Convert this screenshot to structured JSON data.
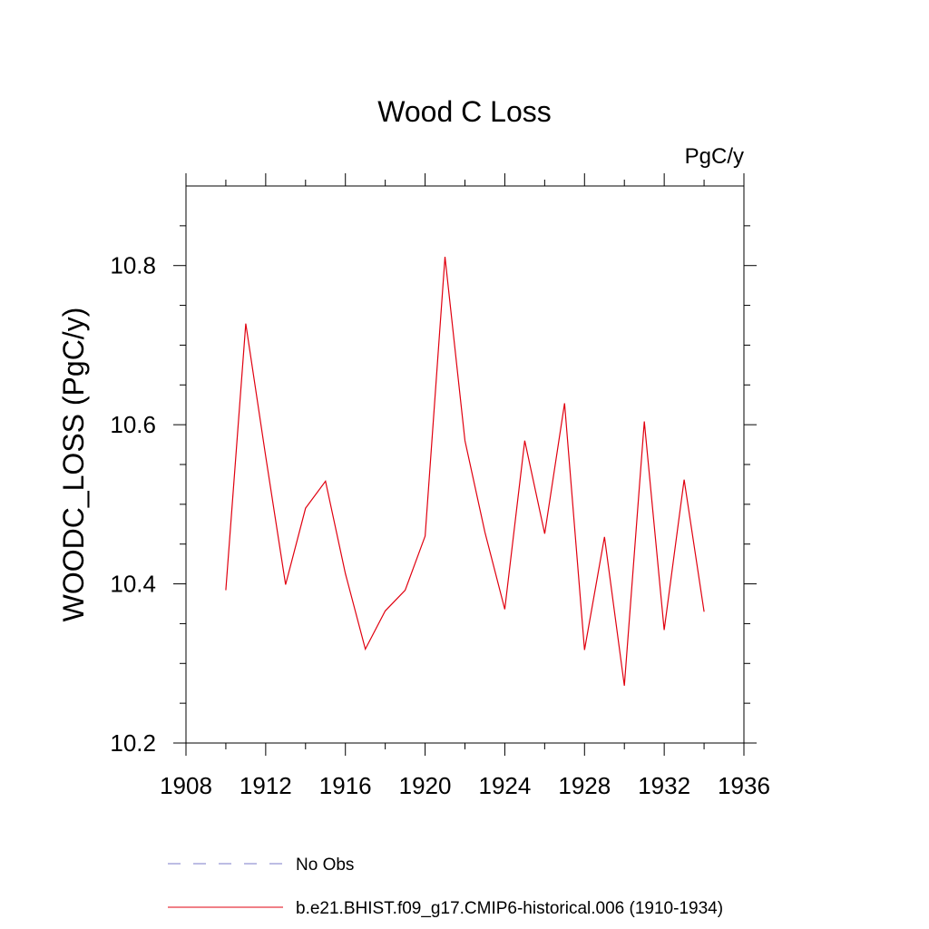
{
  "chart_data": {
    "type": "line",
    "title": "Wood C Loss",
    "units_label": "PgC/y",
    "ylabel": "WOODC_LOSS  (PgC/y)",
    "xlabel": "",
    "xlim": [
      1908,
      1936
    ],
    "ylim": [
      10.2,
      10.9
    ],
    "x_ticks": [
      1908,
      1912,
      1916,
      1920,
      1924,
      1928,
      1932,
      1936
    ],
    "y_ticks": [
      10.2,
      10.4,
      10.6,
      10.8
    ],
    "y_tick_labels": [
      "10.2",
      "10.4",
      "10.6",
      "10.8"
    ],
    "grid": false,
    "legend_position": "bottom",
    "series": [
      {
        "name": "b.e21.BHIST.f09_g17.CMIP6-historical.006 (1910-1934)",
        "color": "#e0000f",
        "style": "solid",
        "x": [
          1910,
          1911,
          1912,
          1913,
          1914,
          1915,
          1916,
          1917,
          1918,
          1919,
          1920,
          1921,
          1922,
          1923,
          1924,
          1925,
          1926,
          1927,
          1928,
          1929,
          1930,
          1931,
          1932,
          1933,
          1934
        ],
        "y": [
          10.392,
          10.727,
          10.56,
          10.399,
          10.495,
          10.529,
          10.413,
          10.318,
          10.366,
          10.392,
          10.46,
          10.811,
          10.58,
          10.465,
          10.368,
          10.58,
          10.463,
          10.627,
          10.317,
          10.459,
          10.272,
          10.604,
          10.342,
          10.531,
          10.365
        ]
      }
    ],
    "legend": [
      {
        "name": "No Obs",
        "color": "#7b7bc8",
        "style": "dashed"
      },
      {
        "name": "b.e21.BHIST.f09_g17.CMIP6-historical.006 (1910-1934)",
        "color": "#e0000f",
        "style": "solid"
      }
    ]
  }
}
